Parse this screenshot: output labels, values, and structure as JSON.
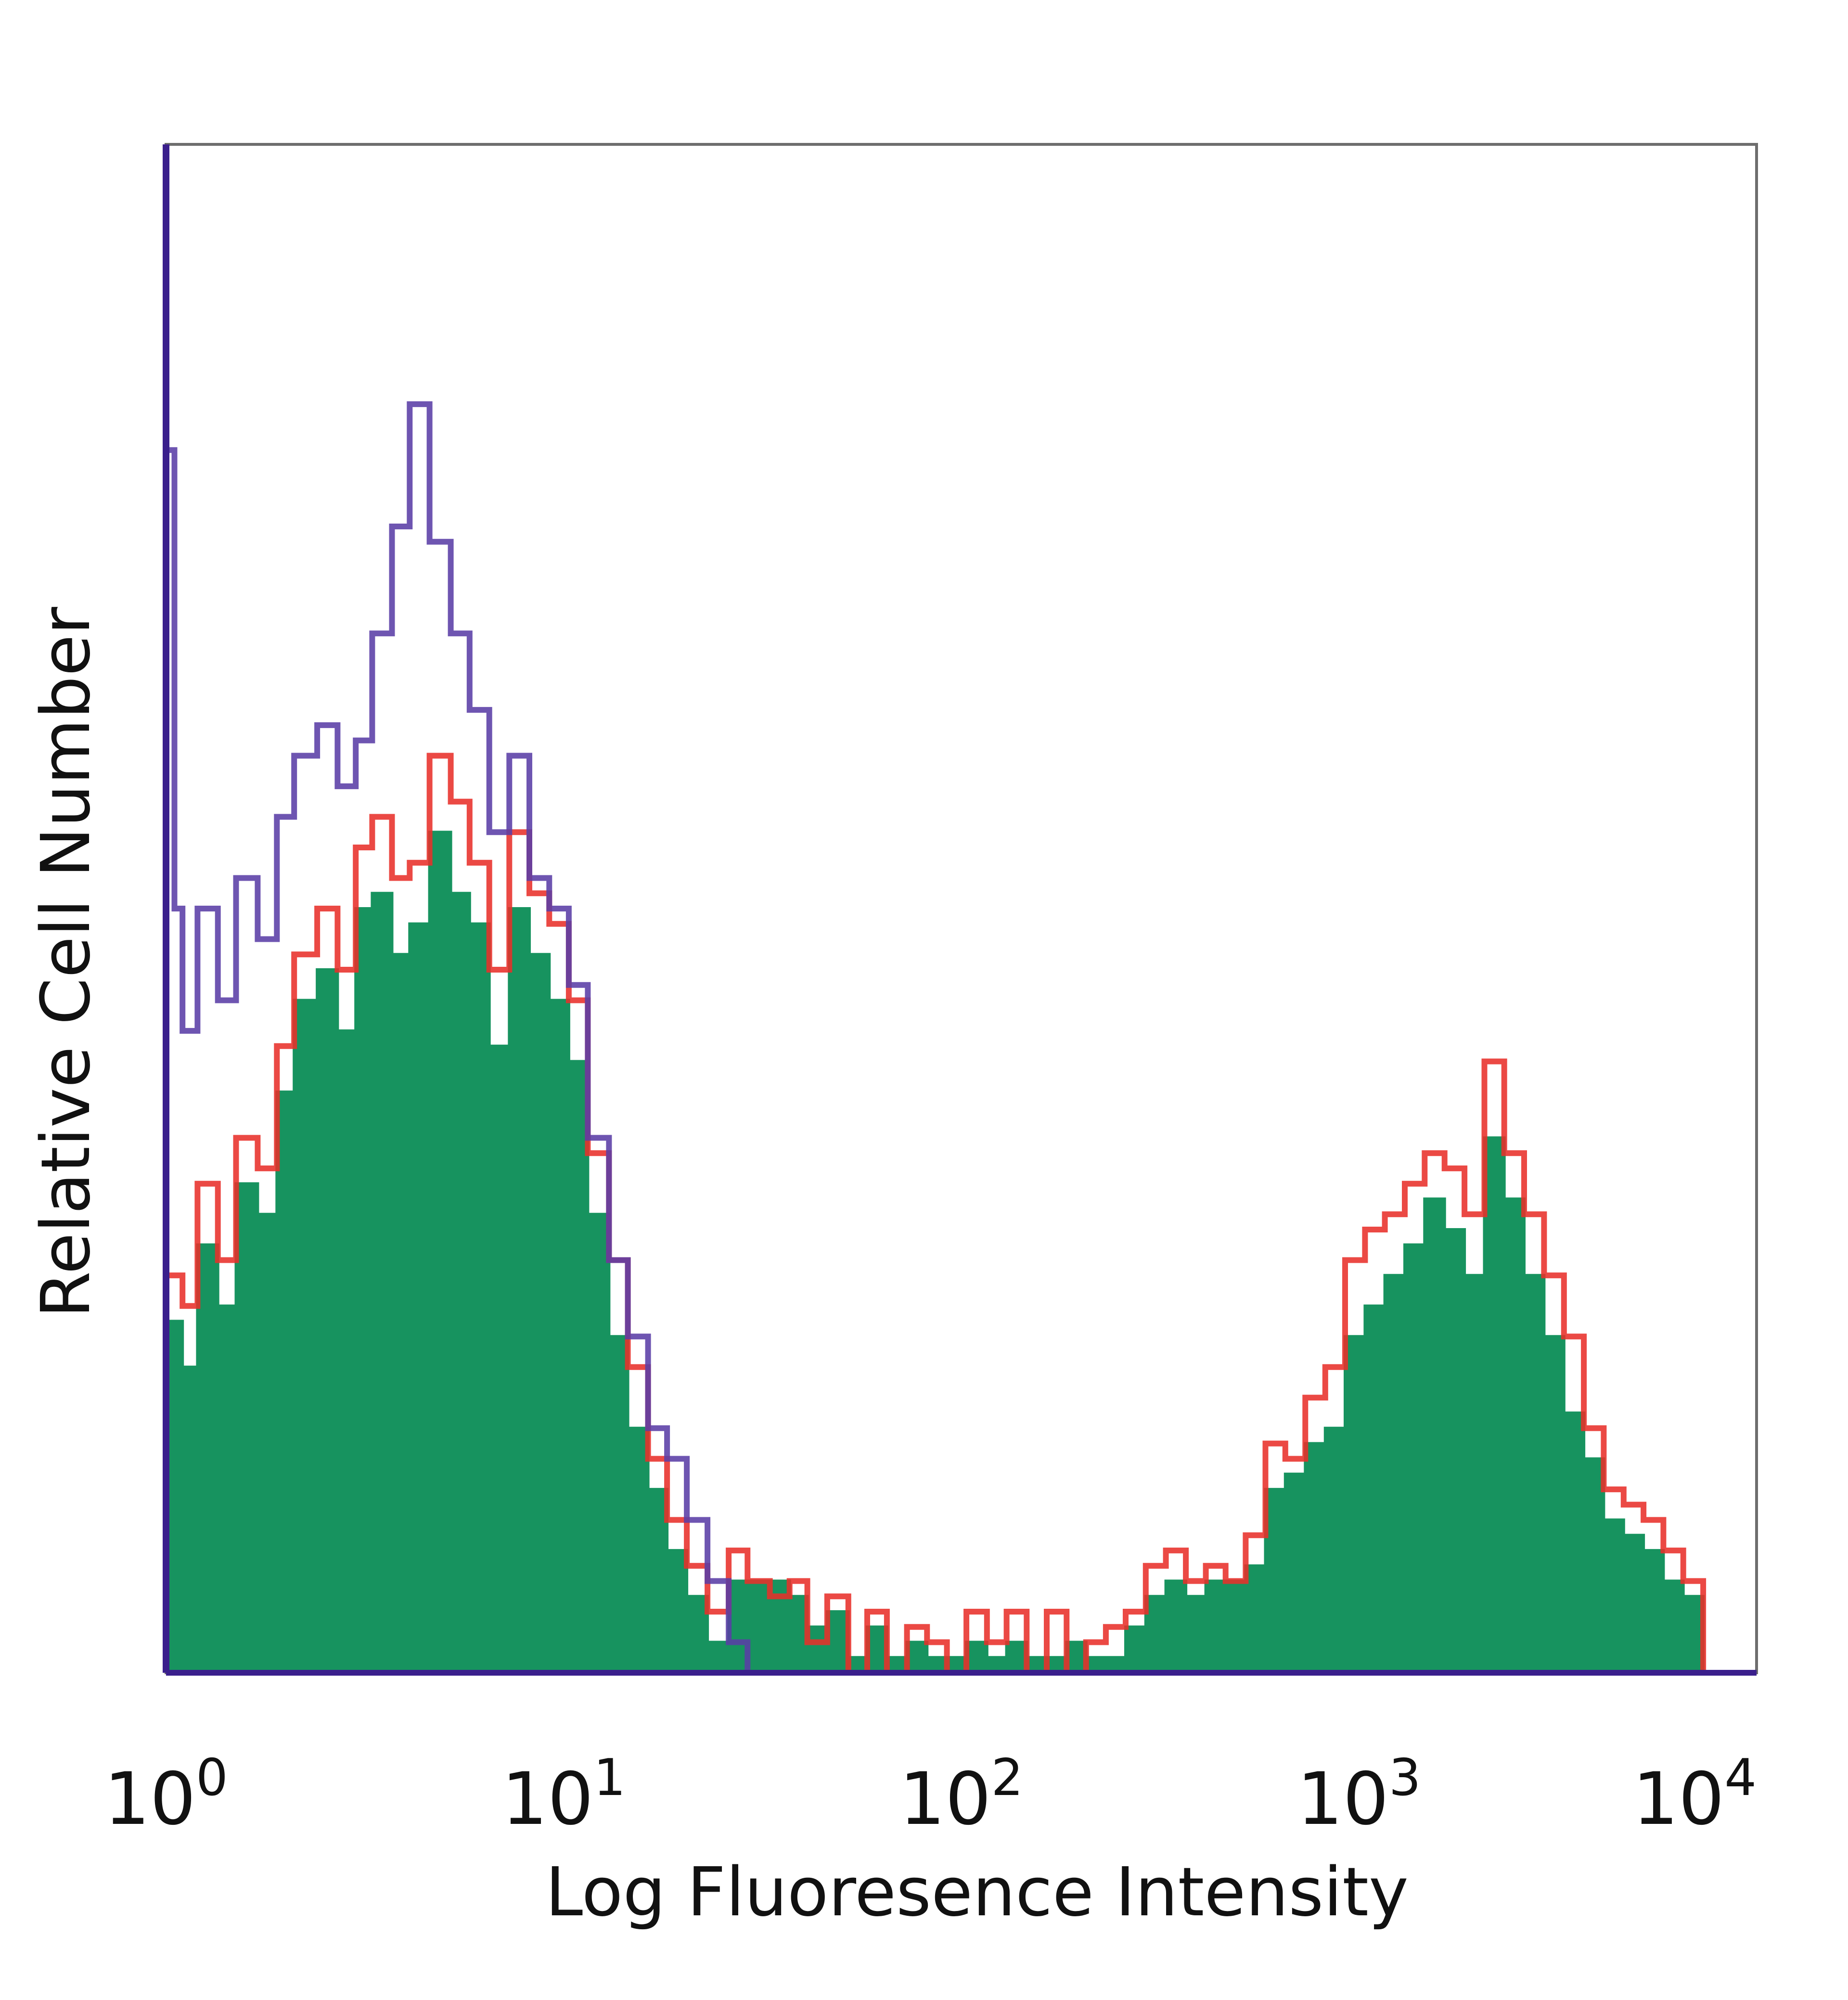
{
  "chart_data": {
    "type": "histogram",
    "title": "",
    "xlabel": "Log Fluoresence Intensity",
    "ylabel": "Relative Cell Number",
    "x_scale": "log",
    "xlim": [
      1,
      10000
    ],
    "ylim": [
      0,
      100
    ],
    "grid": false,
    "x_ticks": [
      {
        "value": 1,
        "base": "10",
        "exp": "0"
      },
      {
        "value": 10,
        "base": "10",
        "exp": "1"
      },
      {
        "value": 100,
        "base": "10",
        "exp": "2"
      },
      {
        "value": 1000,
        "base": "10",
        "exp": "3"
      },
      {
        "value": 10000,
        "base": "10",
        "exp": "4"
      }
    ],
    "series": [
      {
        "style": "filled",
        "fill_color": "#17935f",
        "line_color": "#17935f",
        "points": [
          [
            1.0,
            23
          ],
          [
            1.1,
            20
          ],
          [
            1.2,
            28
          ],
          [
            1.35,
            24
          ],
          [
            1.5,
            32
          ],
          [
            1.7,
            30
          ],
          [
            1.9,
            38
          ],
          [
            2.1,
            44
          ],
          [
            2.4,
            46
          ],
          [
            2.7,
            42
          ],
          [
            3.0,
            50
          ],
          [
            3.3,
            51
          ],
          [
            3.7,
            47
          ],
          [
            4.1,
            49
          ],
          [
            4.6,
            55
          ],
          [
            5.2,
            51
          ],
          [
            5.8,
            49
          ],
          [
            6.5,
            41
          ],
          [
            7.3,
            50
          ],
          [
            8.2,
            47
          ],
          [
            9.2,
            44
          ],
          [
            10.3,
            40
          ],
          [
            11.5,
            30
          ],
          [
            13.0,
            22
          ],
          [
            14.5,
            16
          ],
          [
            16.3,
            12
          ],
          [
            18.2,
            8
          ],
          [
            20.4,
            5
          ],
          [
            23,
            2
          ],
          [
            26,
            6
          ],
          [
            29,
            6
          ],
          [
            33,
            6
          ],
          [
            37,
            5
          ],
          [
            41,
            3
          ],
          [
            46,
            4
          ],
          [
            52,
            1
          ],
          [
            58,
            3
          ],
          [
            65,
            1
          ],
          [
            73,
            2
          ],
          [
            82,
            1
          ],
          [
            92,
            1
          ],
          [
            103,
            2
          ],
          [
            116,
            1
          ],
          [
            130,
            2
          ],
          [
            146,
            1
          ],
          [
            164,
            1
          ],
          [
            184,
            2
          ],
          [
            206,
            1
          ],
          [
            231,
            1
          ],
          [
            259,
            3
          ],
          [
            291,
            5
          ],
          [
            327,
            6
          ],
          [
            367,
            5
          ],
          [
            412,
            6
          ],
          [
            462,
            6
          ],
          [
            519,
            7
          ],
          [
            582,
            12
          ],
          [
            653,
            13
          ],
          [
            733,
            15
          ],
          [
            823,
            16
          ],
          [
            923,
            22
          ],
          [
            1036,
            24
          ],
          [
            1162,
            26
          ],
          [
            1304,
            28
          ],
          [
            1463,
            31
          ],
          [
            1642,
            29
          ],
          [
            1843,
            26
          ],
          [
            2068,
            35
          ],
          [
            2320,
            31
          ],
          [
            2603,
            26
          ],
          [
            2921,
            22
          ],
          [
            3278,
            17
          ],
          [
            3678,
            14
          ],
          [
            4127,
            10
          ],
          [
            4631,
            9
          ],
          [
            5196,
            8
          ],
          [
            5830,
            6
          ],
          [
            6542,
            5
          ],
          [
            7341,
            0
          ],
          [
            10000,
            0
          ]
        ]
      },
      {
        "style": "outline",
        "line_color": "#e8302a",
        "points": [
          [
            1.0,
            26
          ],
          [
            1.1,
            24
          ],
          [
            1.2,
            32
          ],
          [
            1.35,
            27
          ],
          [
            1.5,
            35
          ],
          [
            1.7,
            33
          ],
          [
            1.9,
            41
          ],
          [
            2.1,
            47
          ],
          [
            2.4,
            50
          ],
          [
            2.7,
            46
          ],
          [
            3.0,
            54
          ],
          [
            3.3,
            56
          ],
          [
            3.7,
            52
          ],
          [
            4.1,
            53
          ],
          [
            4.6,
            60
          ],
          [
            5.2,
            57
          ],
          [
            5.8,
            53
          ],
          [
            6.5,
            46
          ],
          [
            7.3,
            55
          ],
          [
            8.2,
            51
          ],
          [
            9.2,
            49
          ],
          [
            10.3,
            44
          ],
          [
            11.5,
            34
          ],
          [
            13.0,
            27
          ],
          [
            14.5,
            20
          ],
          [
            16.3,
            14
          ],
          [
            18.2,
            10
          ],
          [
            20.4,
            7
          ],
          [
            23,
            4
          ],
          [
            26,
            8
          ],
          [
            29,
            6
          ],
          [
            33,
            5
          ],
          [
            37,
            6
          ],
          [
            41,
            2
          ],
          [
            46,
            5
          ],
          [
            52,
            0
          ],
          [
            58,
            4
          ],
          [
            65,
            0
          ],
          [
            73,
            3
          ],
          [
            82,
            2
          ],
          [
            92,
            0
          ],
          [
            103,
            4
          ],
          [
            116,
            2
          ],
          [
            130,
            4
          ],
          [
            146,
            0
          ],
          [
            164,
            4
          ],
          [
            184,
            0
          ],
          [
            206,
            2
          ],
          [
            231,
            3
          ],
          [
            259,
            4
          ],
          [
            291,
            7
          ],
          [
            327,
            8
          ],
          [
            367,
            6
          ],
          [
            412,
            7
          ],
          [
            462,
            6
          ],
          [
            519,
            9
          ],
          [
            582,
            15
          ],
          [
            653,
            14
          ],
          [
            733,
            18
          ],
          [
            823,
            20
          ],
          [
            923,
            27
          ],
          [
            1036,
            29
          ],
          [
            1162,
            30
          ],
          [
            1304,
            32
          ],
          [
            1463,
            34
          ],
          [
            1642,
            33
          ],
          [
            1843,
            30
          ],
          [
            2068,
            40
          ],
          [
            2320,
            34
          ],
          [
            2603,
            30
          ],
          [
            2921,
            26
          ],
          [
            3278,
            22
          ],
          [
            3678,
            16
          ],
          [
            4127,
            12
          ],
          [
            4631,
            11
          ],
          [
            5196,
            10
          ],
          [
            5830,
            8
          ],
          [
            6542,
            6
          ],
          [
            7341,
            0
          ],
          [
            10000,
            0
          ]
        ]
      },
      {
        "style": "outline",
        "line_color": "#5a3ea6",
        "points": [
          [
            1.0,
            80
          ],
          [
            1.05,
            50
          ],
          [
            1.1,
            42
          ],
          [
            1.2,
            50
          ],
          [
            1.35,
            44
          ],
          [
            1.5,
            52
          ],
          [
            1.7,
            48
          ],
          [
            1.9,
            56
          ],
          [
            2.1,
            60
          ],
          [
            2.4,
            62
          ],
          [
            2.7,
            58
          ],
          [
            3.0,
            61
          ],
          [
            3.3,
            68
          ],
          [
            3.7,
            75
          ],
          [
            4.1,
            83
          ],
          [
            4.6,
            74
          ],
          [
            5.2,
            68
          ],
          [
            5.8,
            63
          ],
          [
            6.5,
            55
          ],
          [
            7.3,
            60
          ],
          [
            8.2,
            52
          ],
          [
            9.2,
            50
          ],
          [
            10.3,
            45
          ],
          [
            11.5,
            35
          ],
          [
            13.0,
            27
          ],
          [
            14.5,
            22
          ],
          [
            16.3,
            16
          ],
          [
            18.2,
            14
          ],
          [
            20.4,
            10
          ],
          [
            23,
            6
          ],
          [
            26,
            2
          ],
          [
            29,
            0
          ],
          [
            33,
            0
          ],
          [
            10000,
            0
          ]
        ]
      }
    ]
  }
}
